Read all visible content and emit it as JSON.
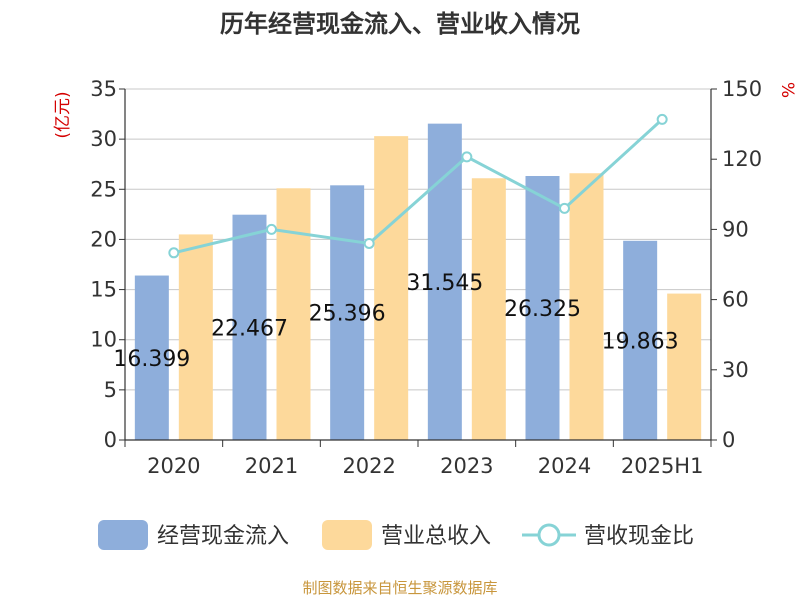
{
  "chart_data": {
    "type": "bar",
    "title": "历年经营现金流入、营业收入情况",
    "categories": [
      "2020",
      "2021",
      "2022",
      "2023",
      "2024",
      "2025H1"
    ],
    "y_left": {
      "label": "(亿元)",
      "ticks": [
        "0",
        "5",
        "10",
        "15",
        "20",
        "25",
        "30",
        "35"
      ],
      "min": 0,
      "max": 35
    },
    "y_right": {
      "label": "%",
      "ticks": [
        "0",
        "30",
        "60",
        "90",
        "120",
        "150"
      ],
      "min": 0,
      "max": 150
    },
    "series": [
      {
        "name": "经营现金流入",
        "type": "bar",
        "axis": "left",
        "color": "#8eaedb",
        "values": [
          16.399,
          22.467,
          25.396,
          31.545,
          26.325,
          19.863
        ],
        "labels": [
          "16.399",
          "22.467",
          "25.396",
          "31.545",
          "26.325",
          "19.863"
        ]
      },
      {
        "name": "营业总收入",
        "type": "bar",
        "axis": "left",
        "color": "#fdd99b",
        "values": [
          20.5,
          25.1,
          30.3,
          26.1,
          26.6,
          14.6
        ]
      },
      {
        "name": "营收现金比",
        "type": "line",
        "axis": "right",
        "color": "#86d3d6",
        "values": [
          80,
          90,
          84,
          121,
          99,
          137
        ]
      }
    ],
    "grid": true,
    "legend_position": "bottom"
  },
  "source": "制图数据来自恒生聚源数据库"
}
